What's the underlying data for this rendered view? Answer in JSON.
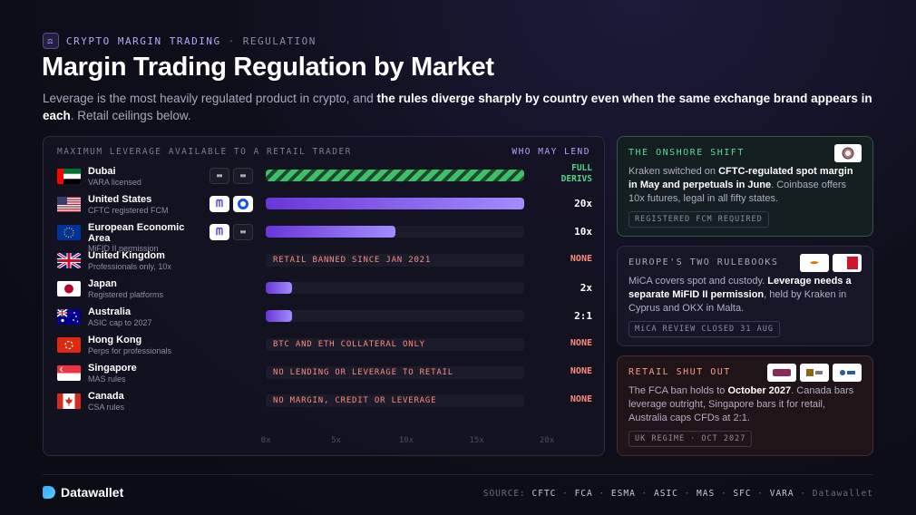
{
  "header": {
    "kicker": "CRYPTO MARGIN TRADING",
    "kicker_sep": "·",
    "kicker_section": "REGULATION",
    "title": "Margin Trading Regulation by Market",
    "subtitle_pre": "Leverage is the most heavily regulated product in crypto, and ",
    "subtitle_bold": "the rules diverge sharply by country even when the same exchange brand appears in each",
    "subtitle_post": ". Retail ceilings below."
  },
  "chart_data": {
    "type": "bar",
    "orientation": "horizontal",
    "title": "MAXIMUM LEVERAGE AVAILABLE TO A RETAIL TRADER",
    "side_header": "WHO MAY LEND",
    "xlim": [
      0,
      20
    ],
    "x_ticks": [
      "0x",
      "5x",
      "10x",
      "15x",
      "20x"
    ],
    "rows": [
      {
        "name": "Dubai",
        "sub": "VARA licensed",
        "flag": "uae",
        "value": 20,
        "style": "hatched",
        "label": "FULL DERIVS",
        "logos": [
          "okx",
          "okx"
        ]
      },
      {
        "name": "United States",
        "sub": "CFTC registered FCM",
        "flag": "us",
        "value": 20,
        "label": "20x",
        "logos": [
          "kraken",
          "coinbase"
        ]
      },
      {
        "name": "European Economic Area",
        "sub": "MiFID II permission",
        "flag": "eu",
        "value": 10,
        "label": "10x",
        "logos": [
          "kraken",
          "okx"
        ]
      },
      {
        "name": "United Kingdom",
        "sub": "Professionals only, 10x",
        "flag": "uk",
        "value": 0,
        "note": "RETAIL BANNED SINCE JAN 2021",
        "label": "NONE"
      },
      {
        "name": "Japan",
        "sub": "Registered platforms",
        "flag": "jp",
        "value": 2,
        "label": "2x"
      },
      {
        "name": "Australia",
        "sub": "ASIC cap to 2027",
        "flag": "au",
        "value": 2,
        "label": "2:1"
      },
      {
        "name": "Hong Kong",
        "sub": "Perps for professionals",
        "flag": "hk",
        "value": 0,
        "note": "BTC AND ETH COLLATERAL ONLY",
        "label": "NONE"
      },
      {
        "name": "Singapore",
        "sub": "MAS rules",
        "flag": "sg",
        "value": 0,
        "note": "NO LENDING OR LEVERAGE TO RETAIL",
        "label": "NONE"
      },
      {
        "name": "Canada",
        "sub": "CSA rules",
        "flag": "ca",
        "value": 0,
        "note": "NO MARGIN, CREDIT OR LEVERAGE",
        "label": "NONE"
      }
    ],
    "colors": {
      "bar_start": "#6a35d8",
      "bar_end": "#a38cff",
      "full": "#3fbf6a",
      "none": "#ff8a7a"
    }
  },
  "cards": [
    {
      "title": "THE ONSHORE SHIFT",
      "body_pre": "Kraken switched on ",
      "body_bold": "CFTC-regulated spot margin in May and perpetuals in June",
      "body_post": ". Coinbase offers 10x futures, legal in all fifty states.",
      "tag": "REGISTERED FCM REQUIRED"
    },
    {
      "title": "EUROPE'S TWO RULEBOOKS",
      "body_pre": "MiCA covers spot and custody. ",
      "body_bold": "Leverage needs a separate MiFID II permission",
      "body_post": ", held by Kraken in Cyprus and OKX in Malta.",
      "tag": "MiCA REVIEW CLOSED 31 AUG"
    },
    {
      "title": "RETAIL SHUT OUT",
      "body_pre": "The FCA ban holds to ",
      "body_bold": "October 2027",
      "body_post": ". Canada bars leverage outright, Singapore bars it for retail, Australia caps CFDs at 2:1.",
      "tag": "UK REGIME · OCT 2027"
    }
  ],
  "footer": {
    "brand": "Datawallet",
    "sources_label": "SOURCE:",
    "sources": [
      "CFTC",
      "FCA",
      "ESMA",
      "ASIC",
      "MAS",
      "SFC",
      "VARA"
    ],
    "sources_end": "Datawallet"
  }
}
